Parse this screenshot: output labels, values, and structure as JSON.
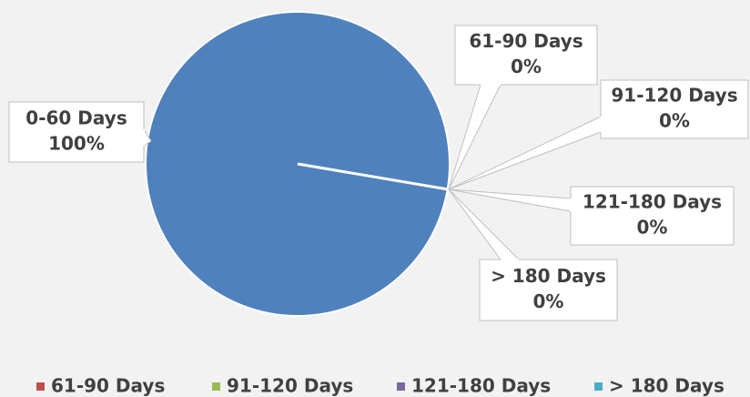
{
  "chart_data": {
    "type": "pie",
    "categories": [
      "0-60 Days",
      "61-90 Days",
      "91-120 Days",
      "121-180 Days",
      "> 180 Days"
    ],
    "values": [
      100,
      0,
      0,
      0,
      0
    ],
    "value_labels": [
      "100%",
      "0%",
      "0%",
      "0%",
      "0%"
    ],
    "colors": [
      "#4f81bd",
      "#c0504d",
      "#9bbb59",
      "#8064a2",
      "#4bacc6"
    ],
    "legend": "bottom"
  }
}
